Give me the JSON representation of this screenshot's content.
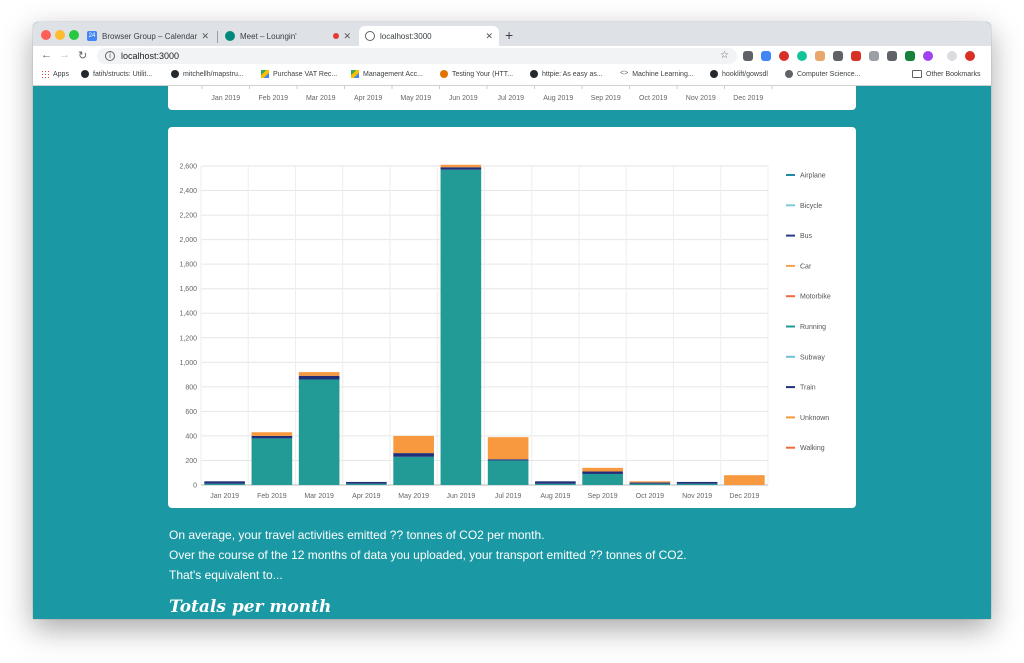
{
  "browser": {
    "tabs": [
      {
        "title": "Browser Group – Calendar – W",
        "icon": "calendar-icon",
        "icon_text": "24"
      },
      {
        "title": "Meet – Loungin'",
        "icon": "meet-icon",
        "recording": true
      },
      {
        "title": "localhost:3000",
        "icon": "globe-icon",
        "active": true
      }
    ],
    "address": "localhost:3000",
    "bookmarks": [
      {
        "label": "Apps",
        "icon": "apps-icon"
      },
      {
        "label": "fatih/structs: Utilit...",
        "icon": "github-icon"
      },
      {
        "label": "mitchellh/mapstru...",
        "icon": "github-icon"
      },
      {
        "label": "Purchase VAT Rec...",
        "icon": "drive-icon"
      },
      {
        "label": "Management Acc...",
        "icon": "drive-icon"
      },
      {
        "label": "Testing Your (HTT...",
        "icon": "rocket-icon"
      },
      {
        "label": "httpie: As easy as...",
        "icon": "github-icon"
      },
      {
        "label": "Machine Learning...",
        "icon": "code-icon"
      },
      {
        "label": "hooklift/gowsdl",
        "icon": "github-icon"
      },
      {
        "label": "Computer Science...",
        "icon": "globe-icon"
      }
    ],
    "other_bookmarks": "Other Bookmarks"
  },
  "top_chart_months": [
    "Jan 2019",
    "Feb 2019",
    "Mar 2019",
    "Apr 2019",
    "May 2019",
    "Jun 2019",
    "Jul 2019",
    "Aug 2019",
    "Sep 2019",
    "Oct 2019",
    "Nov 2019",
    "Dec 2019"
  ],
  "chart_data": {
    "type": "bar",
    "stacked": true,
    "categories": [
      "Jan 2019",
      "Feb 2019",
      "Mar 2019",
      "Apr 2019",
      "May 2019",
      "Jun 2019",
      "Jul 2019",
      "Aug 2019",
      "Sep 2019",
      "Oct 2019",
      "Nov 2019",
      "Dec 2019"
    ],
    "ylim": [
      0,
      2600
    ],
    "yticks": [
      0,
      200,
      400,
      600,
      800,
      1000,
      1200,
      1400,
      1600,
      1800,
      2000,
      2200,
      2400,
      2600
    ],
    "ytick_labels": [
      "0",
      "200",
      "400",
      "600",
      "800",
      "1,000",
      "1,200",
      "1,400",
      "1,600",
      "1,800",
      "2,000",
      "2,200",
      "2,400",
      "2,600"
    ],
    "grid": true,
    "legend_position": "right",
    "series": [
      {
        "name": "Airplane",
        "color": "#1f8aa6",
        "values": [
          0,
          0,
          0,
          0,
          0,
          0,
          0,
          0,
          0,
          0,
          0,
          0
        ]
      },
      {
        "name": "Bicycle",
        "color": "#7ec8d6",
        "values": [
          0,
          0,
          0,
          0,
          0,
          0,
          0,
          0,
          0,
          0,
          0,
          0
        ]
      },
      {
        "name": "Bus",
        "color": "#2c3a8c",
        "values": [
          0,
          0,
          0,
          0,
          0,
          0,
          0,
          0,
          0,
          0,
          0,
          0
        ]
      },
      {
        "name": "Car",
        "color": "#f4a04a",
        "values": [
          0,
          0,
          0,
          0,
          0,
          0,
          0,
          0,
          0,
          0,
          0,
          0
        ]
      },
      {
        "name": "Motorbike",
        "color": "#f06a3a",
        "values": [
          0,
          0,
          0,
          0,
          0,
          0,
          0,
          0,
          0,
          0,
          0,
          0
        ]
      },
      {
        "name": "Running",
        "color": "#229a95",
        "values": [
          10,
          380,
          860,
          10,
          230,
          2570,
          200,
          10,
          90,
          10,
          10,
          0
        ]
      },
      {
        "name": "Subway",
        "color": "#6fc3d4",
        "values": [
          0,
          0,
          0,
          0,
          0,
          0,
          0,
          0,
          0,
          0,
          0,
          0
        ]
      },
      {
        "name": "Train",
        "color": "#22307a",
        "values": [
          20,
          20,
          30,
          15,
          30,
          20,
          10,
          20,
          20,
          10,
          15,
          0
        ]
      },
      {
        "name": "Unknown",
        "color": "#f8983f",
        "values": [
          0,
          30,
          30,
          0,
          140,
          20,
          180,
          0,
          30,
          10,
          0,
          80
        ]
      },
      {
        "name": "Walking",
        "color": "#f26b36",
        "values": [
          0,
          0,
          0,
          0,
          0,
          0,
          0,
          0,
          0,
          0,
          0,
          0
        ]
      }
    ]
  },
  "summary": {
    "line1": "On average, your travel activities emitted ?? tonnes of CO2 per month.",
    "line2": "Over the course of the 12 months of data you uploaded, your transport emitted ?? tonnes of CO2.",
    "line3": "That's equivalent to..."
  },
  "section_title": "Totals per month"
}
